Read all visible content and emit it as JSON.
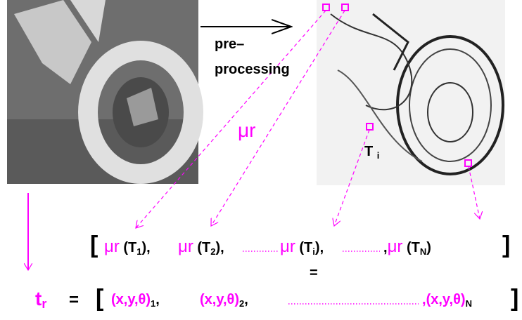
{
  "arrow_label": [
    "pre–",
    "processing"
  ],
  "mu_label": "μr",
  "patch_label": {
    "base": "T",
    "sub": "i"
  },
  "feature_vector": {
    "open": "[",
    "close": "]",
    "items": [
      {
        "fn": "μr",
        "arg": "(T",
        "sub": "1",
        "end": "),"
      },
      {
        "fn": "μr",
        "arg": "(T",
        "sub": "2",
        "end": "),"
      },
      {
        "fn": "μr",
        "arg": "(T",
        "sub": "i",
        "end": "),"
      },
      {
        "pre": ",",
        "fn": "μr",
        "arg": "(T",
        "sub": "N",
        "end": ")"
      }
    ]
  },
  "equals": "=",
  "template": {
    "lhs": "t",
    "lhs_sub": "r",
    "eq": "=",
    "open": "[",
    "close": "]",
    "items": [
      {
        "tuple": "(x,y,θ)",
        "sub": "1",
        "end": ","
      },
      {
        "tuple": "(x,y,θ)",
        "sub": "2",
        "end": ","
      },
      {
        "pre": ",",
        "tuple": "(x,y,θ)",
        "sub": "N"
      }
    ]
  }
}
